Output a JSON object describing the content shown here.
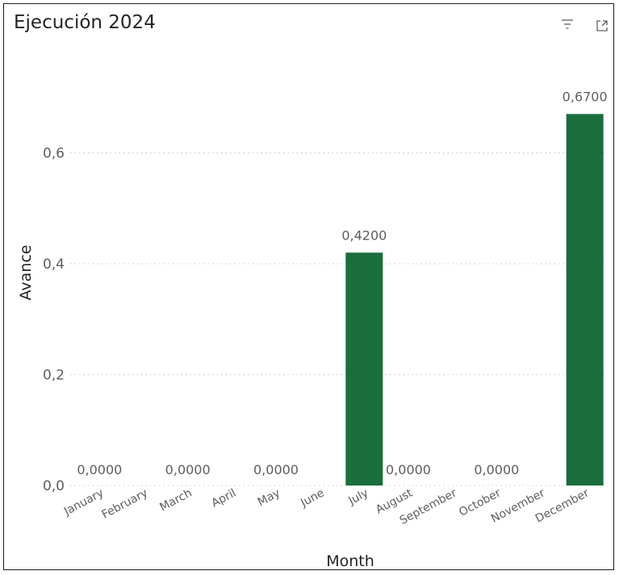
{
  "visual": {
    "title": "Ejecución 2024",
    "header_icons": [
      "filter-icon",
      "focus-mode-icon"
    ]
  },
  "colors": {
    "bar": "#1a6e3c",
    "axis_text": "#605e5c",
    "gridline": "#c8c6c4",
    "title_text": "#252423"
  },
  "chart_data": {
    "type": "bar",
    "title": "Ejecución 2024",
    "xlabel": "Month",
    "ylabel": "Avance",
    "categories": [
      "January",
      "February",
      "March",
      "April",
      "May",
      "June",
      "July",
      "August",
      "September",
      "October",
      "November",
      "December"
    ],
    "values": [
      0,
      null,
      0,
      null,
      0,
      null,
      0.42,
      0,
      null,
      0,
      null,
      0.67
    ],
    "data_labels": [
      "0,0000",
      "",
      "0,0000",
      "",
      "0,0000",
      "",
      "0,4200",
      "0,0000",
      "",
      "0,0000",
      "",
      "0,6700"
    ],
    "yticks": [
      "0,0",
      "0,2",
      "0,4",
      "0,6"
    ],
    "ytick_values": [
      0,
      0.2,
      0.4,
      0.6
    ],
    "ylim": [
      0,
      0.72
    ],
    "grid": true,
    "gridline_style": "dotted"
  }
}
